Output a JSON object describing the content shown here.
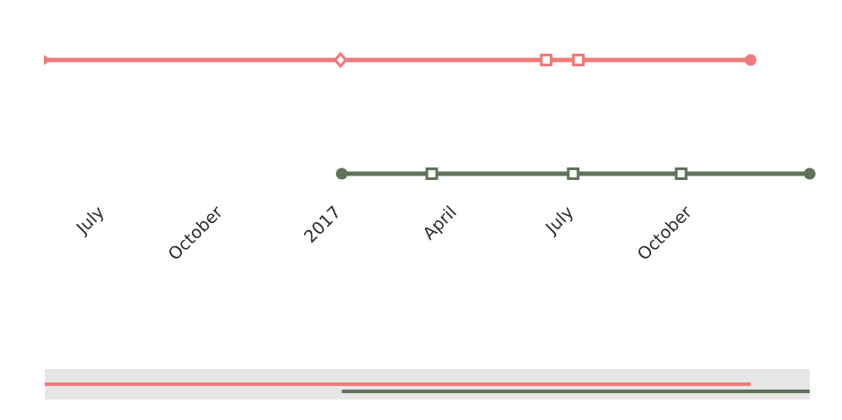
{
  "chart_data": {
    "type": "timeline",
    "title": "",
    "xlabel": "",
    "ylabel": "",
    "x_range": [
      "2016-05-15",
      "2017-12-31"
    ],
    "x_ticks": [
      {
        "date": "2016-07-01",
        "label": "July"
      },
      {
        "date": "2016-10-01",
        "label": "October"
      },
      {
        "date": "2017-01-01",
        "label": "2017"
      },
      {
        "date": "2017-04-01",
        "label": "April"
      },
      {
        "date": "2017-07-01",
        "label": "July"
      },
      {
        "date": "2017-10-01",
        "label": "October"
      }
    ],
    "series": [
      {
        "color": "#f07b7a",
        "start": "2016-05-15",
        "end": "2017-11-15",
        "events": [
          {
            "date": "2016-05-15",
            "marker": "triangle"
          },
          {
            "date": "2016-12-31",
            "marker": "diamond"
          },
          {
            "date": "2017-06-09",
            "marker": "square"
          },
          {
            "date": "2017-07-04",
            "marker": "square"
          },
          {
            "date": "2017-11-15",
            "marker": "circle"
          }
        ]
      },
      {
        "color": "#5f7359",
        "start": "2017-01-01",
        "end": "2017-12-31",
        "events": [
          {
            "date": "2017-01-01",
            "marker": "circle"
          },
          {
            "date": "2017-03-12",
            "marker": "square"
          },
          {
            "date": "2017-06-30",
            "marker": "square"
          },
          {
            "date": "2017-09-22",
            "marker": "square"
          },
          {
            "date": "2017-12-31",
            "marker": "circle"
          }
        ]
      }
    ],
    "navigator": {
      "background": "#e6e6e6"
    }
  }
}
